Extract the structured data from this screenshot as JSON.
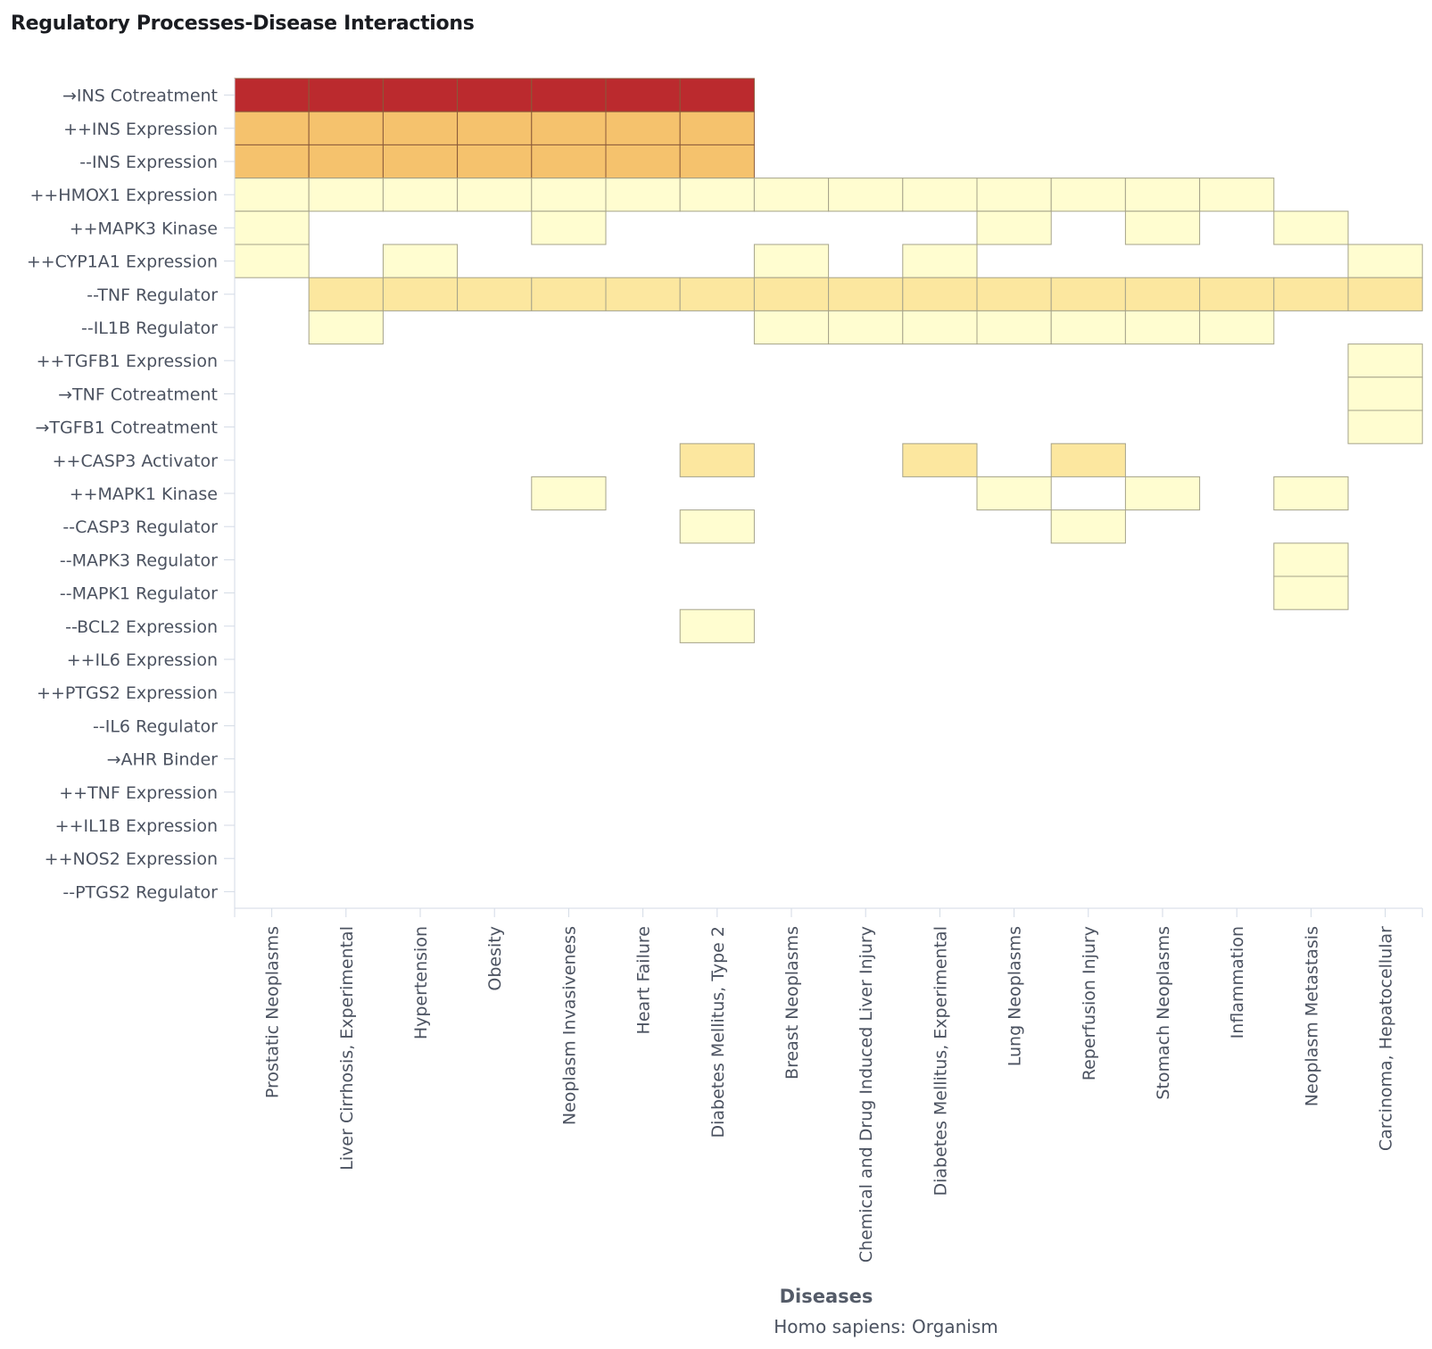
{
  "title": "Regulatory Processes-Disease Interactions",
  "chart_data": {
    "type": "heatmap",
    "title": "Regulatory Processes-Disease Interactions",
    "xlabel": "Diseases",
    "subtitle": "Homo sapiens: Organism",
    "ylabel": "",
    "x_categories": [
      "Prostatic Neoplasms",
      "Liver Cirrhosis, Experimental",
      "Hypertension",
      "Obesity",
      "Neoplasm Invasiveness",
      "Heart Failure",
      "Diabetes Mellitus, Type 2",
      "Breast Neoplasms",
      "Chemical and Drug Induced Liver Injury",
      "Diabetes Mellitus, Experimental",
      "Lung Neoplasms",
      "Reperfusion Injury",
      "Stomach Neoplasms",
      "Inflammation",
      "Neoplasm Metastasis",
      "Carcinoma, Hepatocellular"
    ],
    "y_categories": [
      "→INS Cotreatment",
      "++INS Expression",
      "--INS Expression",
      "++HMOX1 Expression",
      "++MAPK3 Kinase",
      "++CYP1A1 Expression",
      "--TNF Regulator",
      "--IL1B Regulator",
      "++TGFB1 Expression",
      "→TNF Cotreatment",
      "→TGFB1 Cotreatment",
      "++CASP3 Activator",
      "++MAPK1 Kinase",
      "--CASP3 Regulator",
      "--MAPK3 Regulator",
      "--MAPK1 Regulator",
      "--BCL2 Expression",
      "++IL6 Expression",
      "++PTGS2 Expression",
      "--IL6 Regulator",
      "→AHR Binder",
      "++TNF Expression",
      "++IL1B Expression",
      "++NOS2 Expression",
      "--PTGS2 Regulator"
    ],
    "color_scale": [
      "#fffdd0",
      "#fce79f",
      "#f5c26d",
      "#bb2a2e"
    ],
    "cells": [
      [
        0,
        0,
        4
      ],
      [
        1,
        0,
        4
      ],
      [
        2,
        0,
        4
      ],
      [
        3,
        0,
        4
      ],
      [
        4,
        0,
        4
      ],
      [
        5,
        0,
        4
      ],
      [
        6,
        0,
        4
      ],
      [
        0,
        1,
        3
      ],
      [
        1,
        1,
        3
      ],
      [
        2,
        1,
        3
      ],
      [
        3,
        1,
        3
      ],
      [
        4,
        1,
        3
      ],
      [
        5,
        1,
        3
      ],
      [
        6,
        1,
        3
      ],
      [
        0,
        2,
        3
      ],
      [
        1,
        2,
        3
      ],
      [
        2,
        2,
        3
      ],
      [
        3,
        2,
        3
      ],
      [
        4,
        2,
        3
      ],
      [
        5,
        2,
        3
      ],
      [
        6,
        2,
        3
      ],
      [
        0,
        3,
        1
      ],
      [
        1,
        3,
        1
      ],
      [
        2,
        3,
        1
      ],
      [
        3,
        3,
        1
      ],
      [
        4,
        3,
        1
      ],
      [
        5,
        3,
        1
      ],
      [
        6,
        3,
        1
      ],
      [
        7,
        3,
        1
      ],
      [
        8,
        3,
        1
      ],
      [
        9,
        3,
        1
      ],
      [
        10,
        3,
        1
      ],
      [
        11,
        3,
        1
      ],
      [
        12,
        3,
        1
      ],
      [
        13,
        3,
        1
      ],
      [
        0,
        4,
        1
      ],
      [
        4,
        4,
        1
      ],
      [
        10,
        4,
        1
      ],
      [
        12,
        4,
        1
      ],
      [
        14,
        4,
        1
      ],
      [
        0,
        5,
        1
      ],
      [
        2,
        5,
        1
      ],
      [
        7,
        5,
        1
      ],
      [
        9,
        5,
        1
      ],
      [
        15,
        5,
        1
      ],
      [
        1,
        6,
        2
      ],
      [
        2,
        6,
        2
      ],
      [
        3,
        6,
        2
      ],
      [
        4,
        6,
        2
      ],
      [
        5,
        6,
        2
      ],
      [
        6,
        6,
        2
      ],
      [
        7,
        6,
        2
      ],
      [
        8,
        6,
        2
      ],
      [
        9,
        6,
        2
      ],
      [
        10,
        6,
        2
      ],
      [
        11,
        6,
        2
      ],
      [
        12,
        6,
        2
      ],
      [
        13,
        6,
        2
      ],
      [
        14,
        6,
        2
      ],
      [
        15,
        6,
        2
      ],
      [
        1,
        7,
        1
      ],
      [
        7,
        7,
        1
      ],
      [
        8,
        7,
        1
      ],
      [
        9,
        7,
        1
      ],
      [
        10,
        7,
        1
      ],
      [
        11,
        7,
        1
      ],
      [
        12,
        7,
        1
      ],
      [
        13,
        7,
        1
      ],
      [
        15,
        8,
        1
      ],
      [
        15,
        9,
        1
      ],
      [
        15,
        10,
        1
      ],
      [
        6,
        11,
        2
      ],
      [
        9,
        11,
        2
      ],
      [
        11,
        11,
        2
      ],
      [
        4,
        12,
        1
      ],
      [
        10,
        12,
        1
      ],
      [
        12,
        12,
        1
      ],
      [
        14,
        12,
        1
      ],
      [
        6,
        13,
        1
      ],
      [
        11,
        13,
        1
      ],
      [
        14,
        14,
        1
      ],
      [
        14,
        15,
        1
      ],
      [
        6,
        16,
        1
      ]
    ]
  }
}
